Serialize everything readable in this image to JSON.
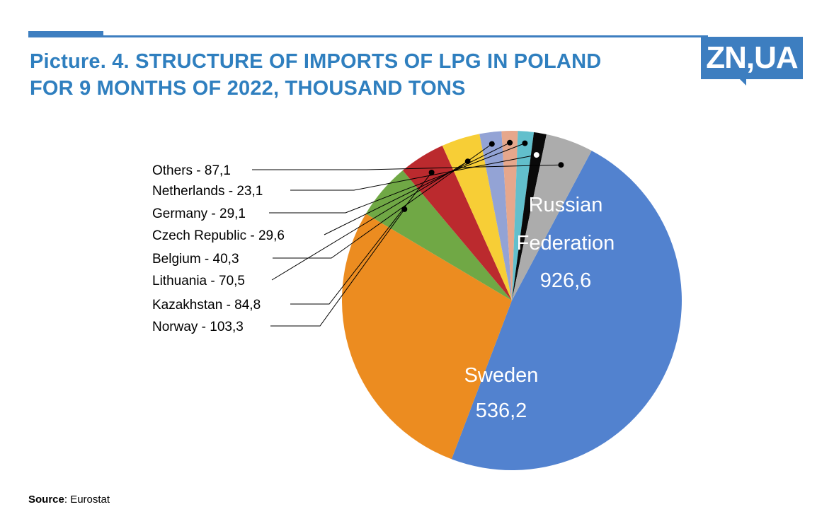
{
  "header": {
    "title_line1": "Picture. 4. STRUCTURE OF IMPORTS OF LPG IN POLAND",
    "title_line2": "FOR 9 MONTHS OF 2022, THOUSAND TONS",
    "logo_text": "ZN,UA"
  },
  "footer": {
    "source_label": "Source",
    "source_value": ": Eurostat"
  },
  "colors": {
    "brand": "#2f7fbf",
    "logo_bg": "#3d7ec0"
  },
  "chart_data": {
    "type": "pie",
    "title": "Picture. 4. STRUCTURE OF IMPORTS OF LPG IN POLAND FOR 9 MONTHS OF 2022, THOUSAND TONS",
    "unit": "thousand tons",
    "slices": [
      {
        "name": "Russian Federation",
        "value": 926.6,
        "value_label": "926,6",
        "color": "#5282cf",
        "inside_label": [
          "Russian",
          "Federation",
          "926,6"
        ]
      },
      {
        "name": "Sweden",
        "value": 536.2,
        "value_label": "536,2",
        "color": "#ec8c20",
        "inside_label": [
          "Sweden",
          "536,2"
        ]
      },
      {
        "name": "Norway",
        "value": 103.3,
        "color": "#70a845",
        "callout": "Norway - 103,3"
      },
      {
        "name": "Kazakhstan",
        "value": 84.8,
        "color": "#bb2a2e",
        "callout": "Kazakhstan - 84,8"
      },
      {
        "name": "Lithuania",
        "value": 70.5,
        "color": "#f7ce36",
        "callout": "Lithuania - 70,5"
      },
      {
        "name": "Belgium",
        "value": 40.3,
        "color": "#93a3d5",
        "callout": "Belgium - 40,3"
      },
      {
        "name": "Czech Republic",
        "value": 29.6,
        "color": "#e6a78c",
        "callout": "Czech Republic - 29,6"
      },
      {
        "name": "Germany",
        "value": 29.1,
        "color": "#62bfcc",
        "callout": "Germany - 29,1"
      },
      {
        "name": "Netherlands",
        "value": 23.1,
        "color": "#0a0a0a",
        "callout": "Netherlands - 23,1"
      },
      {
        "name": "Others",
        "value": 87.1,
        "color": "#acacac",
        "callout": "Others - 87,1"
      }
    ],
    "legend": "none",
    "labels": "callouts on left for small slices, inside labels for large slices"
  }
}
